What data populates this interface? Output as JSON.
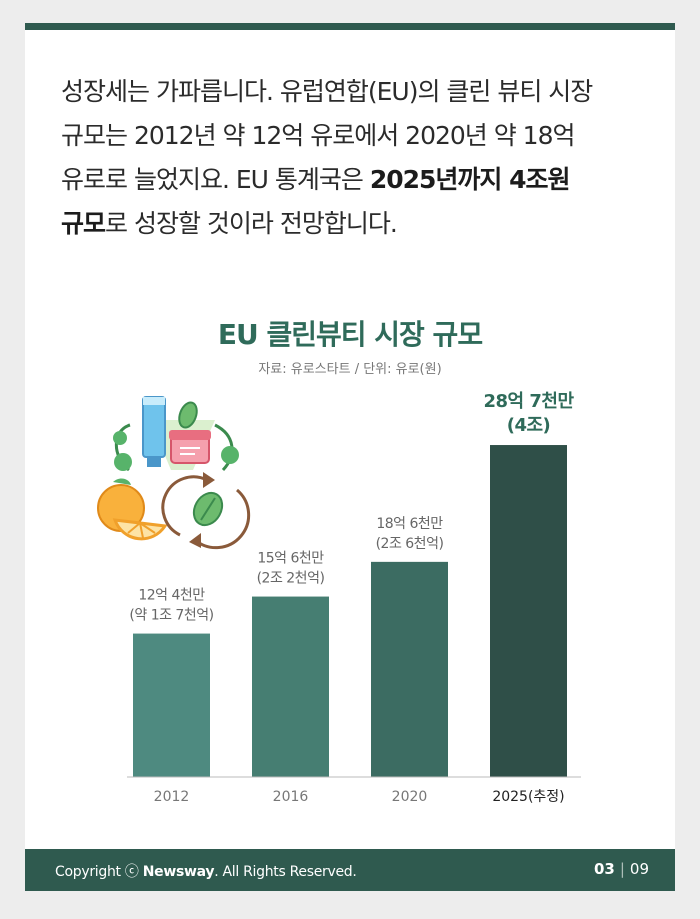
{
  "intro": {
    "line1": "성장세는 가파릅니다. 유럽연합(EU)의 클린 뷰티 시장",
    "line2": "규모는 2012년 약 12억 유로에서 2020년 약 18억",
    "line3_plain": "유로로 늘었지요. EU 통계국은 ",
    "line3_bold": "2025년까지 4조원",
    "line4_bold": "규모",
    "line4_plain": "로 성장할 것이라 전망합니다."
  },
  "chart_data": {
    "type": "bar",
    "title": "EU 클린뷰티 시장 규모",
    "source": "자료: 유로스타트 / 단위: 유로(원)",
    "categories": [
      "2012",
      "2016",
      "2020",
      "2025(추정)"
    ],
    "values": [
      12.4,
      15.6,
      18.6,
      28.7
    ],
    "value_unit": "억 유로",
    "data_labels": [
      [
        "12억 4천만",
        "(약 1조 7천억)"
      ],
      [
        "15억 6천만",
        "(2조 2천억)"
      ],
      [
        "18억 6천만",
        "(2조 6천억)"
      ],
      [
        "28억 7천만",
        "(4조)"
      ]
    ],
    "ylim": [
      0,
      30
    ],
    "grid": false,
    "colors": {
      "bars": [
        "#4e8a80",
        "#467e72",
        "#3c6c62",
        "#2f4f48"
      ],
      "labels": "#666666",
      "highlight_label": "#2f6b5a"
    }
  },
  "illustration": {
    "icon": "cosmetics-leaf-orange-icon"
  },
  "footer": {
    "copyright_prefix": "Copyright ⓒ ",
    "brand": "Newsway",
    "copyright_suffix": ". All Rights Reserved.",
    "page_current": "03",
    "page_separator": "|",
    "page_total": "09"
  }
}
